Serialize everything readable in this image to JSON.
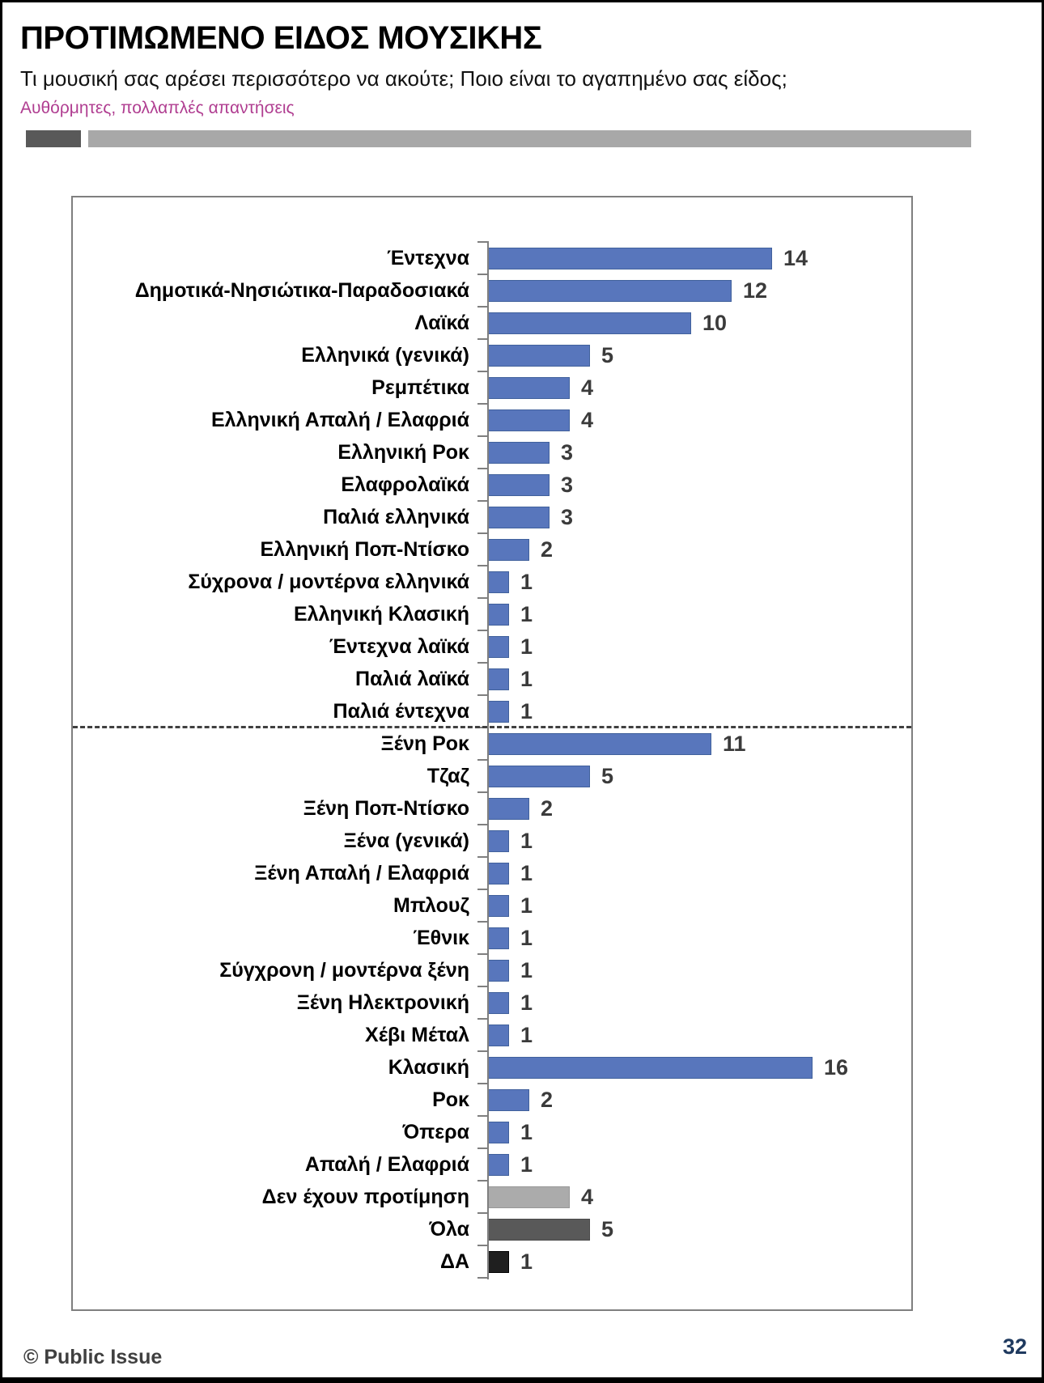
{
  "header": {
    "title": "ΠΡΟΤΙΜΩΜΕΝΟ ΕΙΔΟΣ ΜΟΥΣΙΚΗΣ",
    "subtitle": "Τι μουσική σας αρέσει περισσότερο να ακούτε; Ποιο είναι το αγαπημένο σας είδος;",
    "note": "Αυθόρμητες, πολλαπλές απαντήσεις"
  },
  "footer": {
    "copyright": "© Public Issue",
    "page_number": "32"
  },
  "chart_data": {
    "type": "bar",
    "orientation": "horizontal",
    "value_axis": {
      "min": 0,
      "max": 16,
      "gridlines": false
    },
    "legend": "none",
    "colors": {
      "blue": "#5876BC",
      "light_gray": "#ABABAB",
      "dark_gray": "#595959",
      "black": "#1F1F1F"
    },
    "separator": {
      "style": "dashed",
      "after_label": "Παλιά έντεχνα",
      "after_index": 14
    },
    "items": [
      {
        "label": "Έντεχνα",
        "value": 14,
        "color": "blue"
      },
      {
        "label": "Δημοτικά-Νησιώτικα-Παραδοσιακά",
        "value": 12,
        "color": "blue"
      },
      {
        "label": "Λαϊκά",
        "value": 10,
        "color": "blue"
      },
      {
        "label": "Ελληνικά (γενικά)",
        "value": 5,
        "color": "blue"
      },
      {
        "label": "Ρεμπέτικα",
        "value": 4,
        "color": "blue"
      },
      {
        "label": "Ελληνική Απαλή / Ελαφριά",
        "value": 4,
        "color": "blue"
      },
      {
        "label": "Ελληνική Ροκ",
        "value": 3,
        "color": "blue"
      },
      {
        "label": "Ελαφρολαϊκά",
        "value": 3,
        "color": "blue"
      },
      {
        "label": "Παλιά ελληνικά",
        "value": 3,
        "color": "blue"
      },
      {
        "label": "Ελληνική Ποπ-Ντίσκο",
        "value": 2,
        "color": "blue"
      },
      {
        "label": "Σύχρονα / μοντέρνα ελληνικά",
        "value": 1,
        "color": "blue"
      },
      {
        "label": "Ελληνική Κλασική",
        "value": 1,
        "color": "blue"
      },
      {
        "label": "Έντεχνα λαϊκά",
        "value": 1,
        "color": "blue"
      },
      {
        "label": "Παλιά λαϊκά",
        "value": 1,
        "color": "blue"
      },
      {
        "label": "Παλιά έντεχνα",
        "value": 1,
        "color": "blue"
      },
      {
        "label": "Ξένη Ροκ",
        "value": 11,
        "color": "blue"
      },
      {
        "label": "Τζαζ",
        "value": 5,
        "color": "blue"
      },
      {
        "label": "Ξένη Ποπ-Ντίσκο",
        "value": 2,
        "color": "blue"
      },
      {
        "label": "Ξένα (γενικά)",
        "value": 1,
        "color": "blue"
      },
      {
        "label": "Ξένη Απαλή / Ελαφριά",
        "value": 1,
        "color": "blue"
      },
      {
        "label": "Μπλουζ",
        "value": 1,
        "color": "blue"
      },
      {
        "label": "Έθνικ",
        "value": 1,
        "color": "blue"
      },
      {
        "label": "Σύγχρονη / μοντέρνα ξένη",
        "value": 1,
        "color": "blue"
      },
      {
        "label": "Ξένη Ηλεκτρονική",
        "value": 1,
        "color": "blue"
      },
      {
        "label": "Χέβι Μέταλ",
        "value": 1,
        "color": "blue"
      },
      {
        "label": "Κλασική",
        "value": 16,
        "color": "blue"
      },
      {
        "label": "Ροκ",
        "value": 2,
        "color": "blue"
      },
      {
        "label": "Όπερα",
        "value": 1,
        "color": "blue"
      },
      {
        "label": "Απαλή / Ελαφριά",
        "value": 1,
        "color": "blue"
      },
      {
        "label": "Δεν έχουν προτίμηση",
        "value": 4,
        "color": "light_gray"
      },
      {
        "label": "Όλα",
        "value": 5,
        "color": "dark_gray"
      },
      {
        "label": "ΔΑ",
        "value": 1,
        "color": "black"
      }
    ]
  }
}
